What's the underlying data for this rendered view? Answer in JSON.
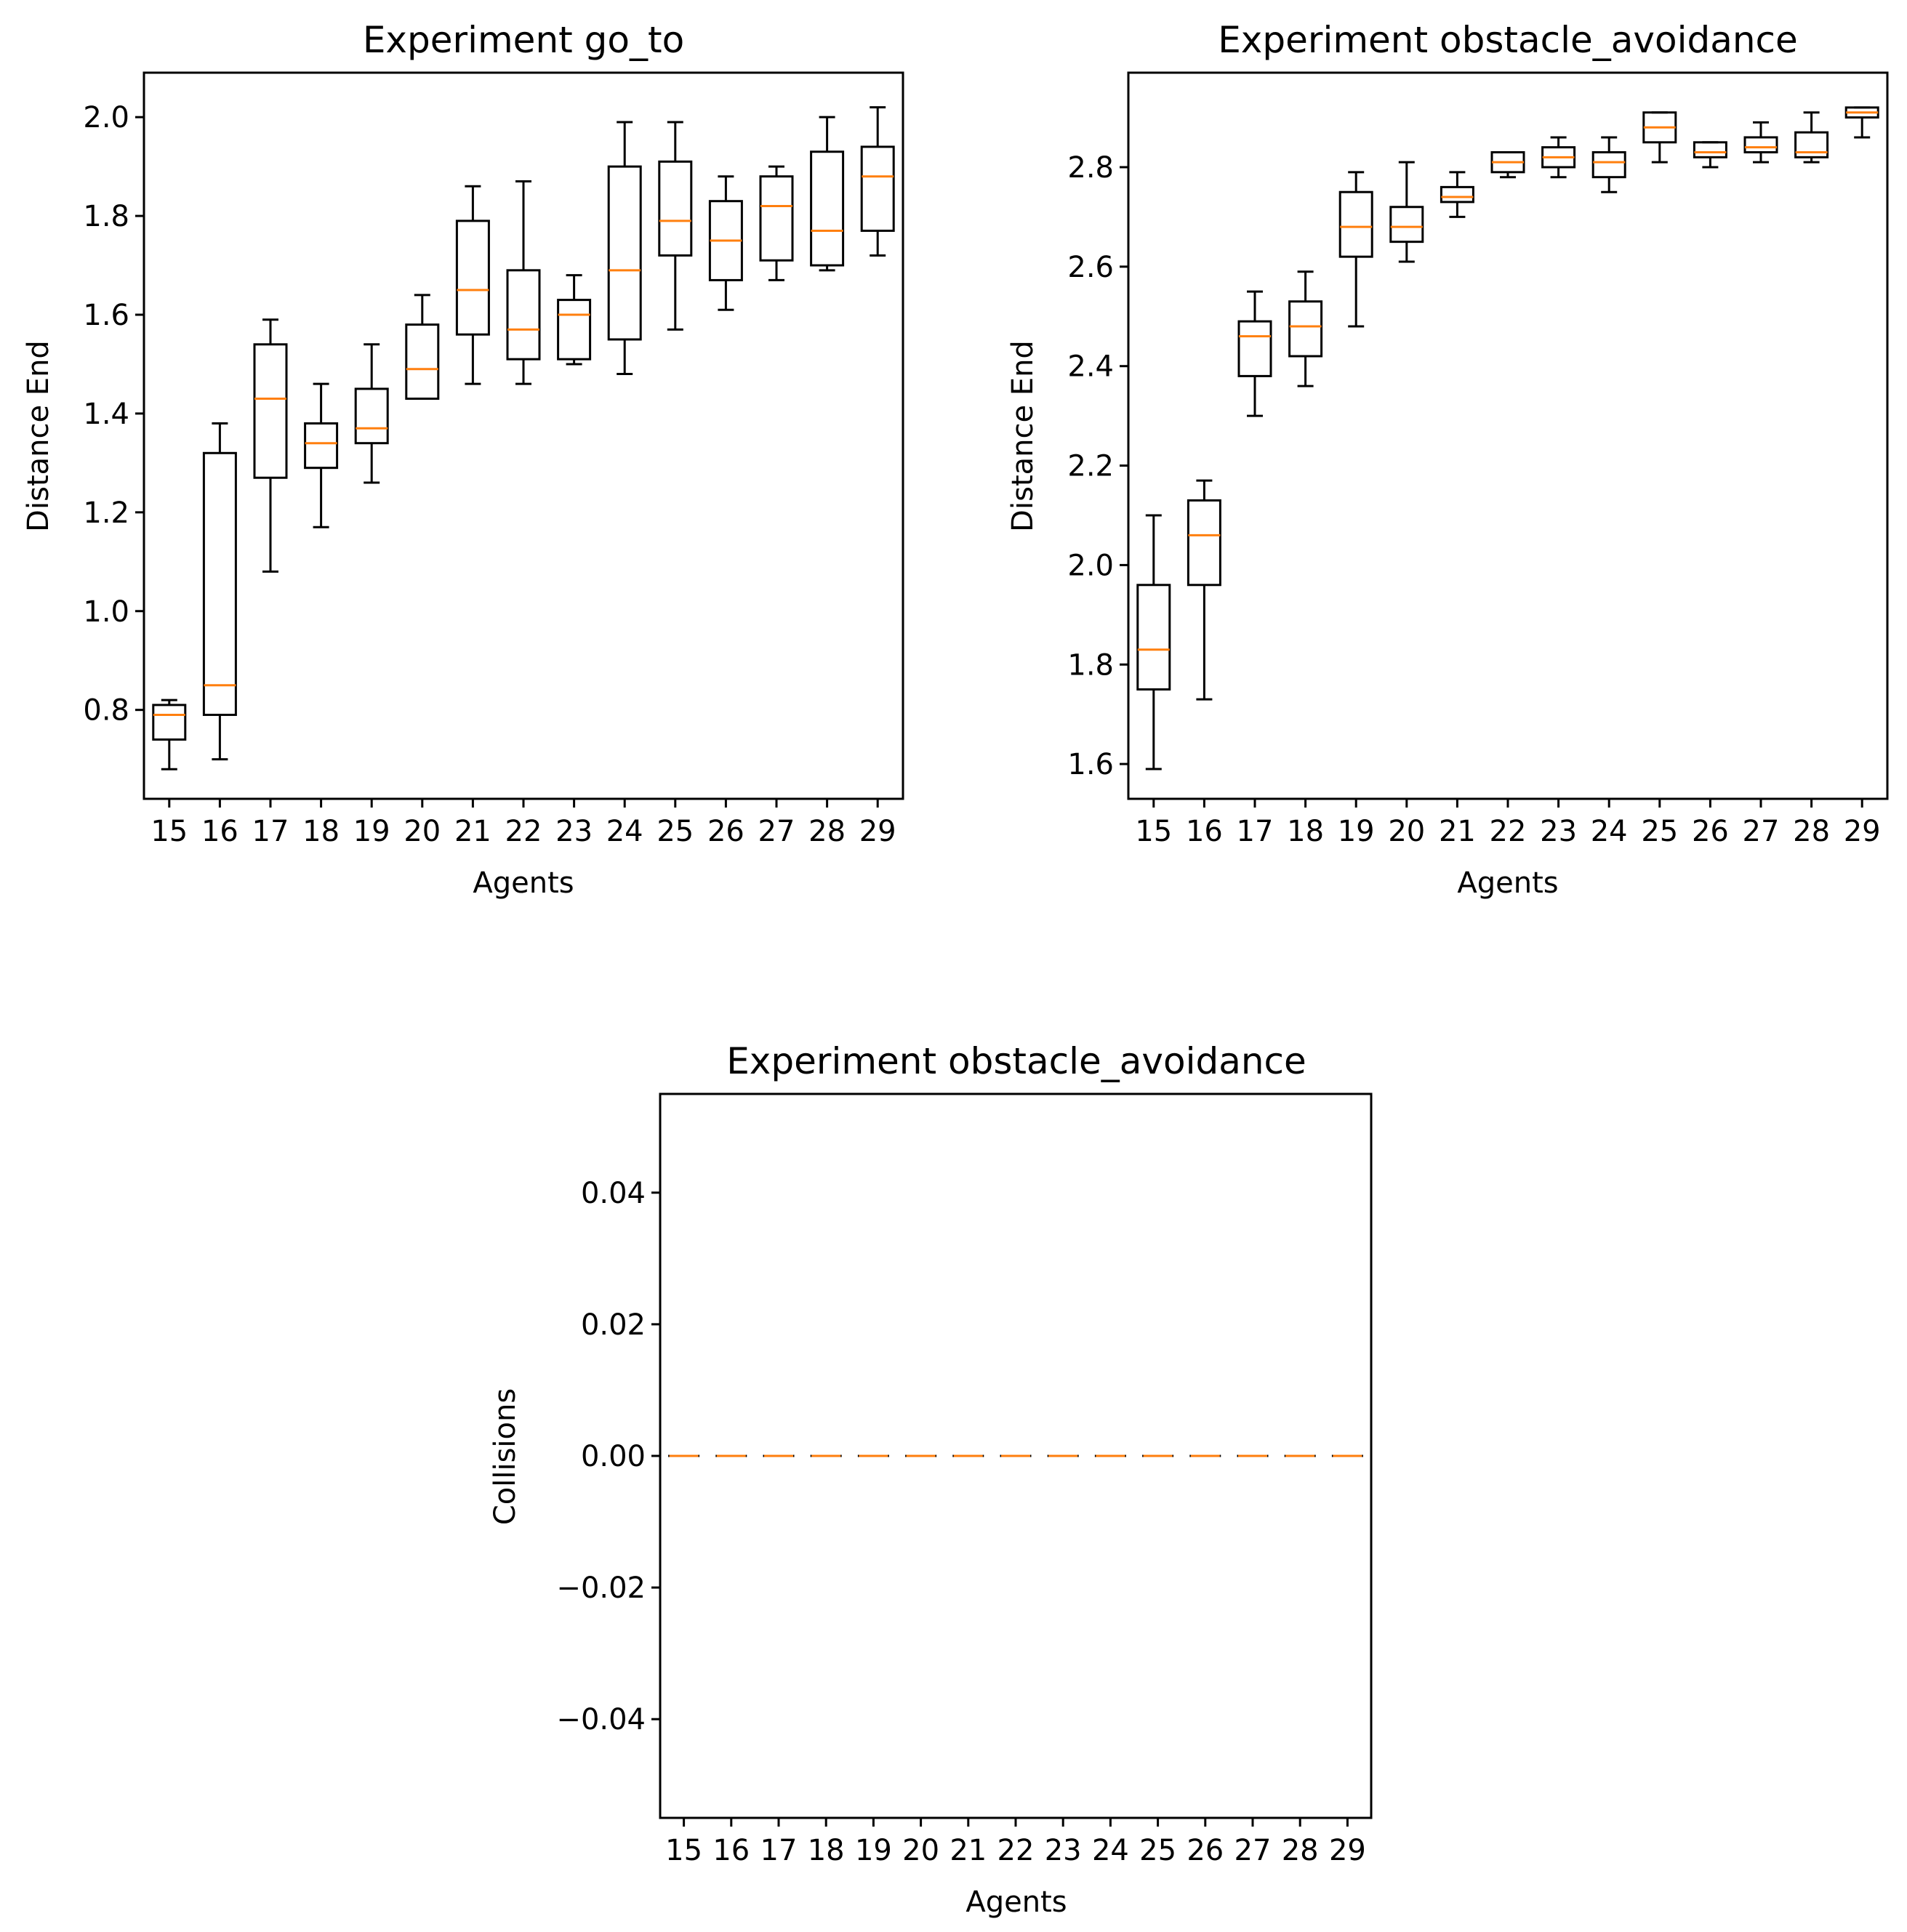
{
  "chart_data": [
    {
      "type": "boxplot",
      "title": "Experiment go_to",
      "xlabel": "Agents",
      "ylabel": "Distance End",
      "ylim": [
        0.62,
        2.09
      ],
      "yticks": [
        0.8,
        1.0,
        1.2,
        1.4,
        1.6,
        1.8,
        2.0
      ],
      "ytick_labels": [
        "0.8",
        "1.0",
        "1.2",
        "1.4",
        "1.6",
        "1.8",
        "2.0"
      ],
      "categories": [
        "15",
        "16",
        "17",
        "18",
        "19",
        "20",
        "21",
        "22",
        "23",
        "24",
        "25",
        "26",
        "27",
        "28",
        "29"
      ],
      "boxes": [
        {
          "whislo": 0.68,
          "q1": 0.74,
          "med": 0.79,
          "q3": 0.81,
          "whishi": 0.82
        },
        {
          "whislo": 0.7,
          "q1": 0.79,
          "med": 0.85,
          "q3": 1.32,
          "whishi": 1.38
        },
        {
          "whislo": 1.08,
          "q1": 1.27,
          "med": 1.43,
          "q3": 1.54,
          "whishi": 1.59
        },
        {
          "whislo": 1.17,
          "q1": 1.29,
          "med": 1.34,
          "q3": 1.38,
          "whishi": 1.46
        },
        {
          "whislo": 1.26,
          "q1": 1.34,
          "med": 1.37,
          "q3": 1.45,
          "whishi": 1.54
        },
        {
          "whislo": 1.43,
          "q1": 1.43,
          "med": 1.49,
          "q3": 1.58,
          "whishi": 1.64
        },
        {
          "whislo": 1.46,
          "q1": 1.56,
          "med": 1.65,
          "q3": 1.79,
          "whishi": 1.86
        },
        {
          "whislo": 1.46,
          "q1": 1.51,
          "med": 1.57,
          "q3": 1.69,
          "whishi": 1.87
        },
        {
          "whislo": 1.5,
          "q1": 1.51,
          "med": 1.6,
          "q3": 1.63,
          "whishi": 1.68
        },
        {
          "whislo": 1.48,
          "q1": 1.55,
          "med": 1.69,
          "q3": 1.9,
          "whishi": 1.99
        },
        {
          "whislo": 1.57,
          "q1": 1.72,
          "med": 1.79,
          "q3": 1.91,
          "whishi": 1.99
        },
        {
          "whislo": 1.61,
          "q1": 1.67,
          "med": 1.75,
          "q3": 1.83,
          "whishi": 1.88
        },
        {
          "whislo": 1.67,
          "q1": 1.71,
          "med": 1.82,
          "q3": 1.88,
          "whishi": 1.9
        },
        {
          "whislo": 1.69,
          "q1": 1.7,
          "med": 1.77,
          "q3": 1.93,
          "whishi": 2.0
        },
        {
          "whislo": 1.72,
          "q1": 1.77,
          "med": 1.88,
          "q3": 1.94,
          "whishi": 2.02
        }
      ]
    },
    {
      "type": "boxplot",
      "title": "Experiment obstacle_avoidance",
      "xlabel": "Agents",
      "ylabel": "Distance End",
      "ylim": [
        1.53,
        2.99
      ],
      "yticks": [
        1.6,
        1.8,
        2.0,
        2.2,
        2.4,
        2.6,
        2.8
      ],
      "ytick_labels": [
        "1.6",
        "1.8",
        "2.0",
        "2.2",
        "2.4",
        "2.6",
        "2.8"
      ],
      "categories": [
        "15",
        "16",
        "17",
        "18",
        "19",
        "20",
        "21",
        "22",
        "23",
        "24",
        "25",
        "26",
        "27",
        "28",
        "29"
      ],
      "boxes": [
        {
          "whislo": 1.59,
          "q1": 1.75,
          "med": 1.83,
          "q3": 1.96,
          "whishi": 2.1
        },
        {
          "whislo": 1.73,
          "q1": 1.96,
          "med": 2.06,
          "q3": 2.13,
          "whishi": 2.17
        },
        {
          "whislo": 2.3,
          "q1": 2.38,
          "med": 2.46,
          "q3": 2.49,
          "whishi": 2.55
        },
        {
          "whislo": 2.36,
          "q1": 2.42,
          "med": 2.48,
          "q3": 2.53,
          "whishi": 2.59
        },
        {
          "whislo": 2.48,
          "q1": 2.62,
          "med": 2.68,
          "q3": 2.75,
          "whishi": 2.79
        },
        {
          "whislo": 2.61,
          "q1": 2.65,
          "med": 2.68,
          "q3": 2.72,
          "whishi": 2.81
        },
        {
          "whislo": 2.7,
          "q1": 2.73,
          "med": 2.74,
          "q3": 2.76,
          "whishi": 2.79
        },
        {
          "whislo": 2.78,
          "q1": 2.79,
          "med": 2.81,
          "q3": 2.83,
          "whishi": 2.83
        },
        {
          "whislo": 2.78,
          "q1": 2.8,
          "med": 2.82,
          "q3": 2.84,
          "whishi": 2.86
        },
        {
          "whislo": 2.75,
          "q1": 2.78,
          "med": 2.81,
          "q3": 2.83,
          "whishi": 2.86
        },
        {
          "whislo": 2.81,
          "q1": 2.85,
          "med": 2.88,
          "q3": 2.91,
          "whishi": 2.91
        },
        {
          "whislo": 2.8,
          "q1": 2.82,
          "med": 2.83,
          "q3": 2.85,
          "whishi": 2.85
        },
        {
          "whislo": 2.81,
          "q1": 2.83,
          "med": 2.84,
          "q3": 2.86,
          "whishi": 2.89
        },
        {
          "whislo": 2.81,
          "q1": 2.82,
          "med": 2.83,
          "q3": 2.87,
          "whishi": 2.91
        },
        {
          "whislo": 2.86,
          "q1": 2.9,
          "med": 2.91,
          "q3": 2.92,
          "whishi": 2.92
        }
      ]
    },
    {
      "type": "boxplot",
      "title": "Experiment obstacle_avoidance",
      "xlabel": "Agents",
      "ylabel": "Collisions",
      "ylim": [
        -0.055,
        0.055
      ],
      "yticks": [
        -0.04,
        -0.02,
        0.0,
        0.02,
        0.04
      ],
      "ytick_labels": [
        "−0.04",
        "−0.02",
        "0.00",
        "0.02",
        "0.04"
      ],
      "categories": [
        "15",
        "16",
        "17",
        "18",
        "19",
        "20",
        "21",
        "22",
        "23",
        "24",
        "25",
        "26",
        "27",
        "28",
        "29"
      ],
      "boxes": [
        {
          "whislo": 0,
          "q1": 0,
          "med": 0,
          "q3": 0,
          "whishi": 0
        },
        {
          "whislo": 0,
          "q1": 0,
          "med": 0,
          "q3": 0,
          "whishi": 0
        },
        {
          "whislo": 0,
          "q1": 0,
          "med": 0,
          "q3": 0,
          "whishi": 0
        },
        {
          "whislo": 0,
          "q1": 0,
          "med": 0,
          "q3": 0,
          "whishi": 0
        },
        {
          "whislo": 0,
          "q1": 0,
          "med": 0,
          "q3": 0,
          "whishi": 0
        },
        {
          "whislo": 0,
          "q1": 0,
          "med": 0,
          "q3": 0,
          "whishi": 0
        },
        {
          "whislo": 0,
          "q1": 0,
          "med": 0,
          "q3": 0,
          "whishi": 0
        },
        {
          "whislo": 0,
          "q1": 0,
          "med": 0,
          "q3": 0,
          "whishi": 0
        },
        {
          "whislo": 0,
          "q1": 0,
          "med": 0,
          "q3": 0,
          "whishi": 0
        },
        {
          "whislo": 0,
          "q1": 0,
          "med": 0,
          "q3": 0,
          "whishi": 0
        },
        {
          "whislo": 0,
          "q1": 0,
          "med": 0,
          "q3": 0,
          "whishi": 0
        },
        {
          "whislo": 0,
          "q1": 0,
          "med": 0,
          "q3": 0,
          "whishi": 0
        },
        {
          "whislo": 0,
          "q1": 0,
          "med": 0,
          "q3": 0,
          "whishi": 0
        },
        {
          "whislo": 0,
          "q1": 0,
          "med": 0,
          "q3": 0,
          "whishi": 0
        },
        {
          "whislo": 0,
          "q1": 0,
          "med": 0,
          "q3": 0,
          "whishi": 0
        }
      ]
    }
  ],
  "colors": {
    "median": "#ff7f0e",
    "box": "#000000",
    "background": "#ffffff"
  }
}
